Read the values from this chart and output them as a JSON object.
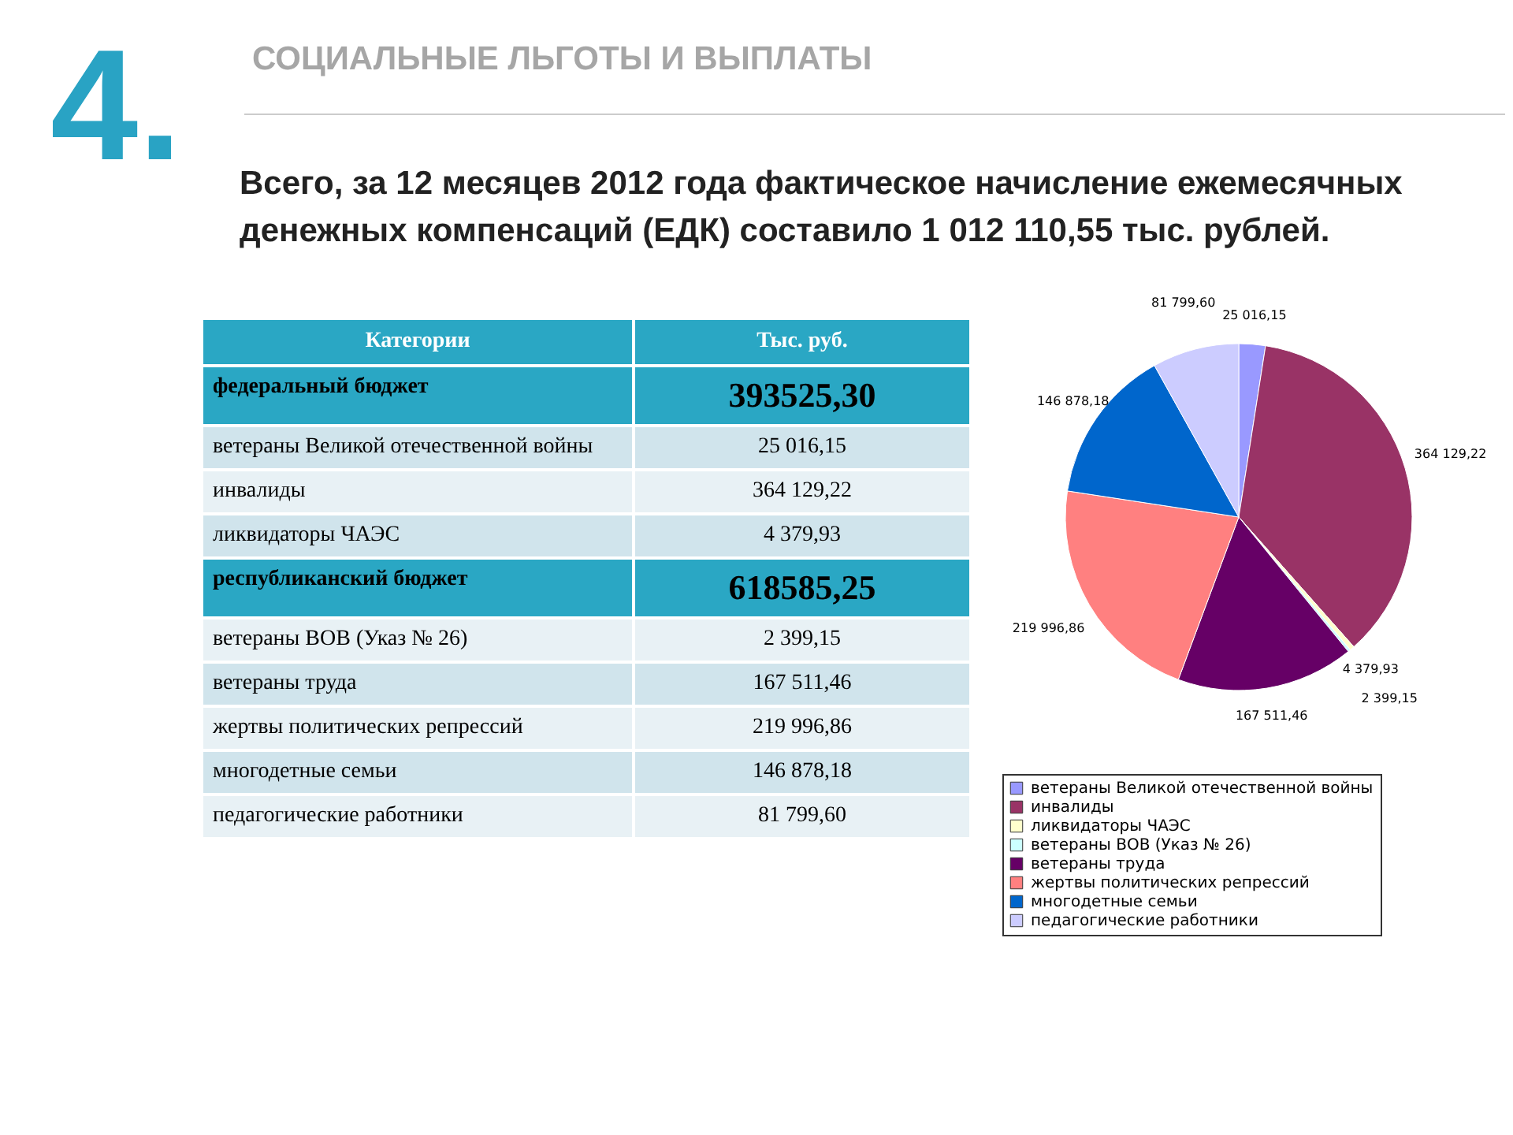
{
  "chart_data": {
    "type": "pie",
    "title": "СОЦИАЛЬНЫЕ ЛЬГОТЫ И ВЫПЛАТЫ",
    "subtitle": "Всего, за 12 месяцев 2012 года фактическое начисление ежемесячных денежных компенсаций (ЕДК) составило 1 012 110,55 тыс. рублей.",
    "categories": [
      "ветераны Великой отечественной войны",
      "инвалиды",
      "ликвидаторы ЧАЭС",
      "ветераны ВОВ (Указ № 26)",
      "ветераны труда",
      "жертвы политических репрессий",
      "многодетные семьи",
      "педагогические работники"
    ],
    "values": [
      25016.15,
      364129.22,
      4379.93,
      2399.15,
      167511.46,
      219996.86,
      146878.18,
      81799.6
    ],
    "colors": [
      "#9999ff",
      "#993366",
      "#ffffcc",
      "#ccffff",
      "#660066",
      "#ff8080",
      "#0066cc",
      "#ccccff"
    ],
    "value_labels": [
      "25 016,15",
      "364 129,22",
      "4 379,93",
      "2 399,15",
      "167 511,46",
      "219 996,86",
      "146 878,18",
      "81 799,60"
    ],
    "legend": "bottom",
    "annotations": [
      "4.",
      "Категории",
      "Тыс. руб.",
      "федеральный бюджет",
      "393525,30",
      "республиканский бюджет",
      "618585,25"
    ]
  }
}
